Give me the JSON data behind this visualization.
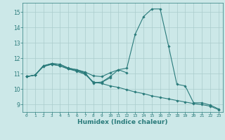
{
  "xlabel": "Humidex (Indice chaleur)",
  "bg_color": "#cce8e8",
  "grid_color": "#aacccc",
  "line_color": "#2a7b7b",
  "xlim": [
    -0.5,
    23.5
  ],
  "ylim": [
    8.5,
    15.6
  ],
  "yticks": [
    9,
    10,
    11,
    12,
    13,
    14,
    15
  ],
  "xticks": [
    0,
    1,
    2,
    3,
    4,
    5,
    6,
    7,
    8,
    9,
    10,
    11,
    12,
    13,
    14,
    15,
    16,
    17,
    18,
    19,
    20,
    21,
    22,
    23
  ],
  "series1_x": [
    0,
    1,
    2,
    3,
    4,
    5,
    6,
    7,
    8,
    9,
    10,
    11,
    12,
    13,
    14,
    15,
    16,
    17,
    18,
    19,
    20,
    21,
    22,
    23
  ],
  "series1_y": [
    10.8,
    10.9,
    11.5,
    11.65,
    11.6,
    11.35,
    11.25,
    11.1,
    10.85,
    10.8,
    11.05,
    11.25,
    11.35,
    13.55,
    14.7,
    15.2,
    15.2,
    12.8,
    10.3,
    10.2,
    9.1,
    9.1,
    8.95,
    8.7
  ],
  "series2_x": [
    0,
    1,
    2,
    3,
    4,
    5,
    6,
    7,
    8,
    9,
    10,
    11,
    12
  ],
  "series2_y": [
    10.8,
    10.9,
    11.5,
    11.65,
    11.6,
    11.35,
    11.25,
    11.05,
    10.4,
    10.45,
    10.8,
    11.25,
    11.05
  ],
  "series3_x": [
    0,
    1,
    2,
    3,
    4,
    5,
    6,
    7,
    8,
    9,
    10
  ],
  "series3_y": [
    10.8,
    10.9,
    11.45,
    11.6,
    11.5,
    11.3,
    11.2,
    11.0,
    10.38,
    10.43,
    10.72
  ],
  "series4_x": [
    0,
    1,
    2,
    3,
    4,
    5,
    6,
    7,
    8,
    9,
    10,
    11,
    12,
    13,
    14,
    15,
    16,
    17,
    18,
    19,
    20,
    21,
    22,
    23
  ],
  "series4_y": [
    10.8,
    10.9,
    11.5,
    11.6,
    11.5,
    11.3,
    11.15,
    10.95,
    10.45,
    10.35,
    10.2,
    10.1,
    9.95,
    9.8,
    9.7,
    9.55,
    9.45,
    9.35,
    9.25,
    9.15,
    9.05,
    8.98,
    8.88,
    8.65
  ]
}
